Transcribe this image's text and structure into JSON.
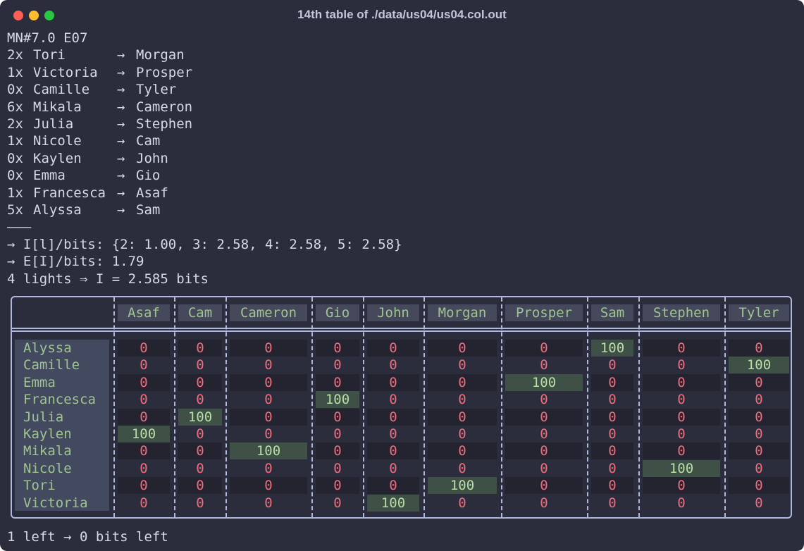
{
  "window": {
    "title": "14th table of ./data/us04/us04.col.out"
  },
  "header_line": "MN#7.0 E07",
  "pairs": [
    {
      "count": "2x",
      "name": "Tori",
      "target": "Morgan"
    },
    {
      "count": "1x",
      "name": "Victoria",
      "target": "Prosper"
    },
    {
      "count": "0x",
      "name": "Camille",
      "target": "Tyler"
    },
    {
      "count": "6x",
      "name": "Mikala",
      "target": "Cameron"
    },
    {
      "count": "2x",
      "name": "Julia",
      "target": "Stephen"
    },
    {
      "count": "1x",
      "name": "Nicole",
      "target": "Cam"
    },
    {
      "count": "0x",
      "name": "Kaylen",
      "target": "John"
    },
    {
      "count": "0x",
      "name": "Emma",
      "target": "Gio"
    },
    {
      "count": "1x",
      "name": "Francesca",
      "target": "Asaf"
    },
    {
      "count": "5x",
      "name": "Alyssa",
      "target": "Sam"
    }
  ],
  "divider": "———",
  "info_lines": [
    "→ I[l]/bits: {2: 1.00, 3: 2.58, 4: 2.58, 5: 2.58}",
    "→ E[I]/bits: 1.79",
    "4 lights ⇒ I = 2.585 bits"
  ],
  "table": {
    "columns": [
      "Asaf",
      "Cam",
      "Cameron",
      "Gio",
      "John",
      "Morgan",
      "Prosper",
      "Sam",
      "Stephen",
      "Tyler"
    ],
    "rows": [
      {
        "label": "Alyssa",
        "values": [
          "0",
          "0",
          "0",
          "0",
          "0",
          "0",
          "0",
          "100",
          "0",
          "0"
        ]
      },
      {
        "label": "Camille",
        "values": [
          "0",
          "0",
          "0",
          "0",
          "0",
          "0",
          "0",
          "0",
          "0",
          "100"
        ]
      },
      {
        "label": "Emma",
        "values": [
          "0",
          "0",
          "0",
          "0",
          "0",
          "0",
          "100",
          "0",
          "0",
          "0"
        ]
      },
      {
        "label": "Francesca",
        "values": [
          "0",
          "0",
          "0",
          "100",
          "0",
          "0",
          "0",
          "0",
          "0",
          "0"
        ]
      },
      {
        "label": "Julia",
        "values": [
          "0",
          "100",
          "0",
          "0",
          "0",
          "0",
          "0",
          "0",
          "0",
          "0"
        ]
      },
      {
        "label": "Kaylen",
        "values": [
          "100",
          "0",
          "0",
          "0",
          "0",
          "0",
          "0",
          "0",
          "0",
          "0"
        ]
      },
      {
        "label": "Mikala",
        "values": [
          "0",
          "0",
          "100",
          "0",
          "0",
          "0",
          "0",
          "0",
          "0",
          "0"
        ]
      },
      {
        "label": "Nicole",
        "values": [
          "0",
          "0",
          "0",
          "0",
          "0",
          "0",
          "0",
          "0",
          "100",
          "0"
        ]
      },
      {
        "label": "Tori",
        "values": [
          "0",
          "0",
          "0",
          "0",
          "0",
          "100",
          "0",
          "0",
          "0",
          "0"
        ]
      },
      {
        "label": "Victoria",
        "values": [
          "0",
          "0",
          "0",
          "0",
          "100",
          "0",
          "0",
          "0",
          "0",
          "0"
        ]
      }
    ]
  },
  "footer_line": "1 left → 0 bits left",
  "colors": {
    "background": "#2b2d3d",
    "text": "#d6d8e4",
    "label_green": "#9ec58f",
    "zero_red": "#ee6d7d",
    "highlight_bg": "#3f5046",
    "border": "#b0b8dd"
  }
}
